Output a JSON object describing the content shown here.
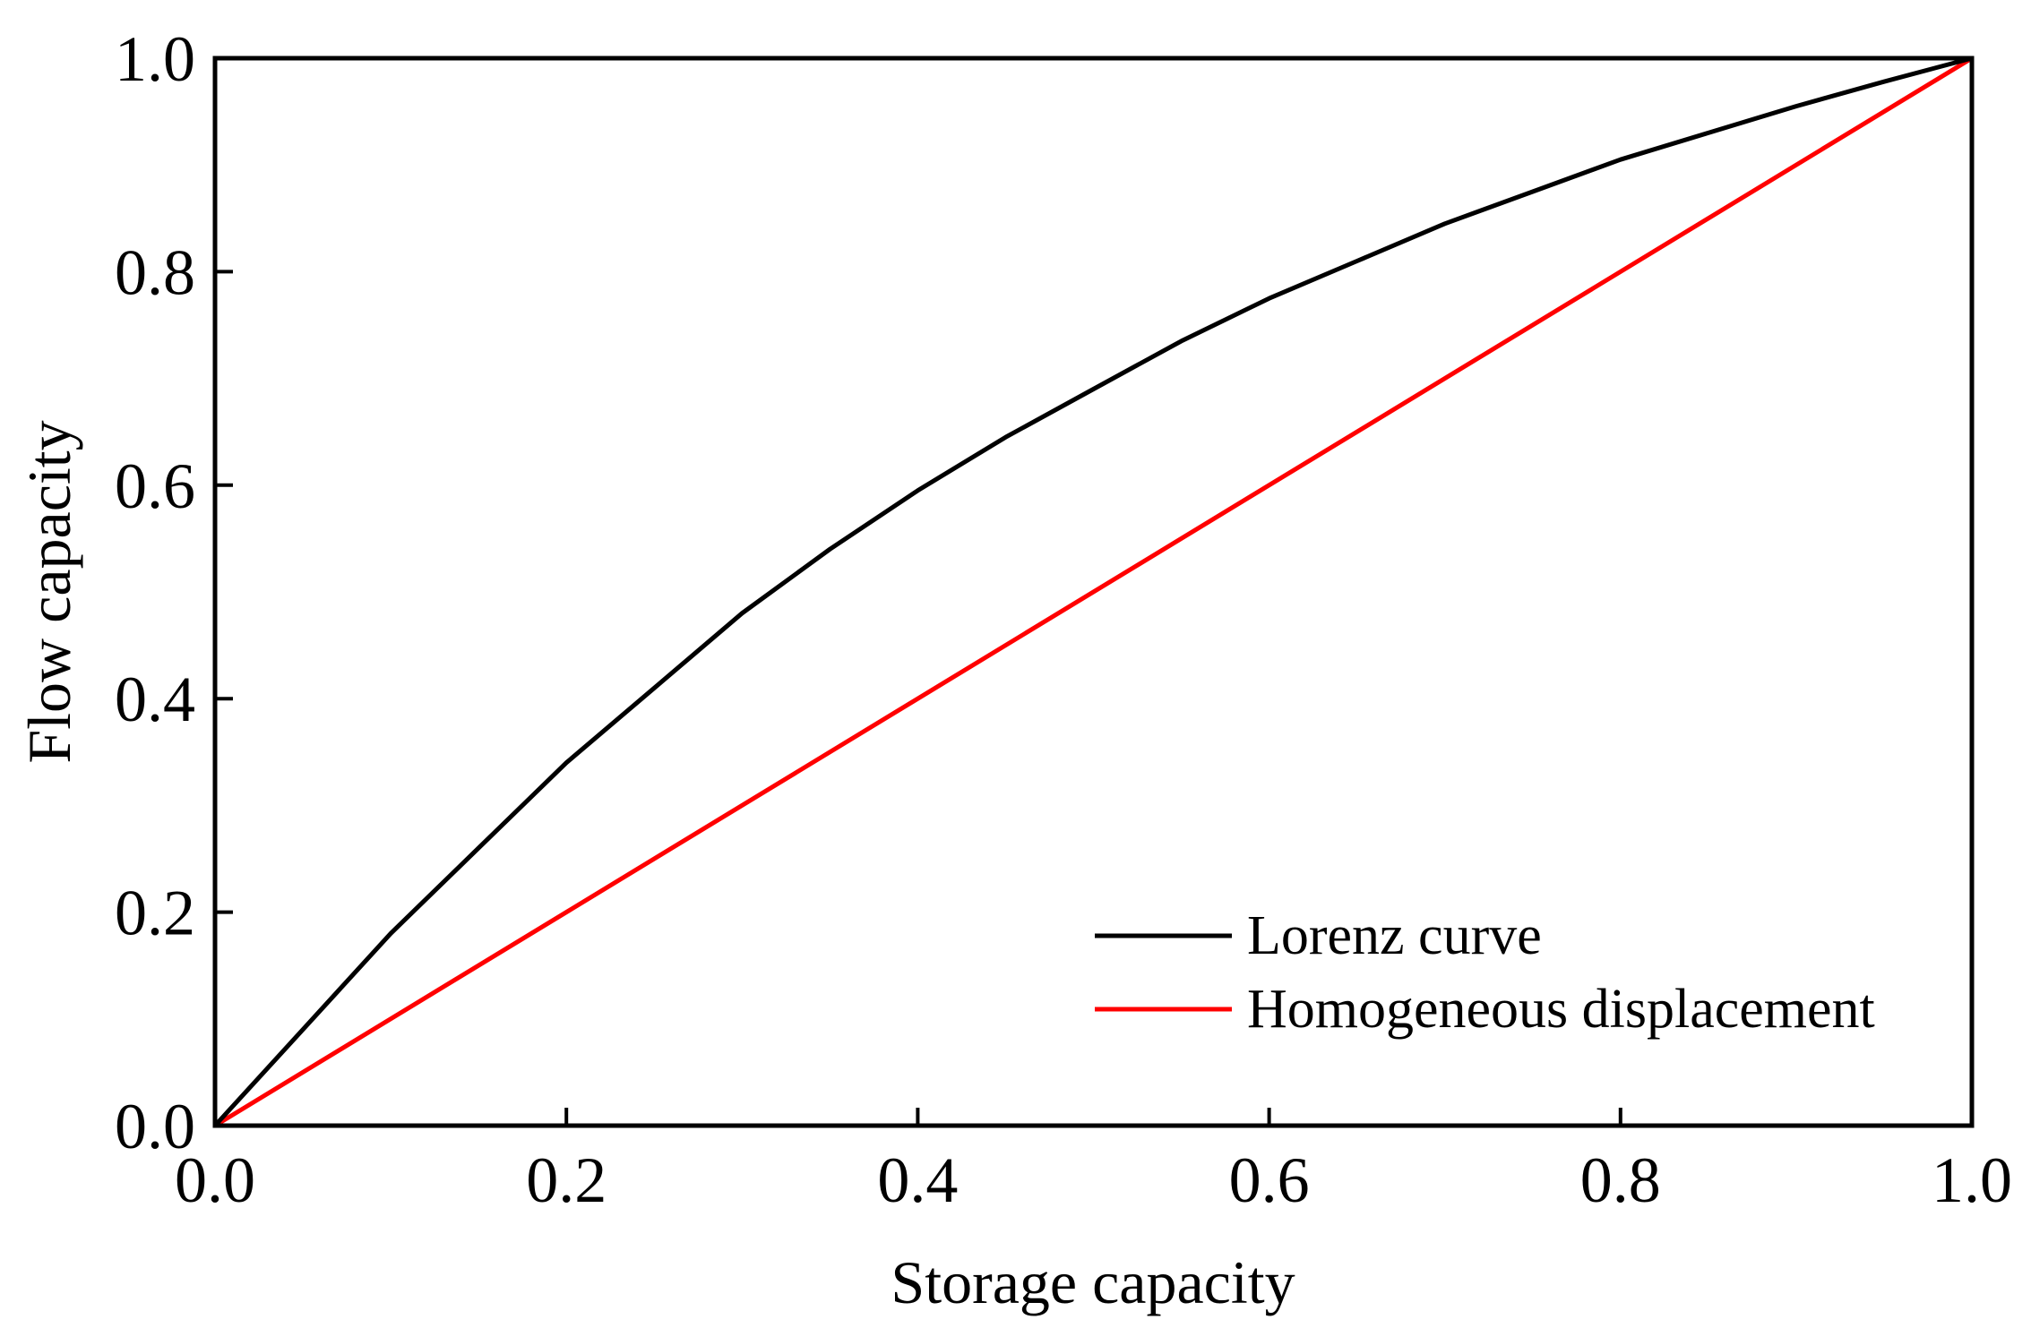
{
  "chart_data": {
    "type": "line",
    "title": "",
    "xlabel": "Storage capacity",
    "ylabel": "Flow capacity",
    "xlim": [
      0,
      1
    ],
    "ylim": [
      0,
      1
    ],
    "xticks": [
      "0.0",
      "0.2",
      "0.4",
      "0.6",
      "0.8",
      "1.0"
    ],
    "yticks": [
      "0.0",
      "0.2",
      "0.4",
      "0.6",
      "0.8",
      "1.0"
    ],
    "grid": false,
    "legend_position": "bottom-right",
    "series": [
      {
        "name": "Lorenz curve",
        "color": "#000000",
        "x": [
          0,
          0.05,
          0.1,
          0.15,
          0.2,
          0.25,
          0.3,
          0.35,
          0.4,
          0.45,
          0.5,
          0.55,
          0.6,
          0.65,
          0.7,
          0.75,
          0.8,
          0.85,
          0.9,
          0.95,
          1.0
        ],
        "y": [
          0,
          0.09,
          0.18,
          0.26,
          0.34,
          0.41,
          0.48,
          0.54,
          0.595,
          0.645,
          0.69,
          0.735,
          0.775,
          0.81,
          0.845,
          0.875,
          0.905,
          0.93,
          0.955,
          0.978,
          1.0
        ]
      },
      {
        "name": "Homogeneous displacement",
        "color": "#ff0000",
        "x": [
          0,
          1
        ],
        "y": [
          0,
          1
        ]
      }
    ]
  }
}
